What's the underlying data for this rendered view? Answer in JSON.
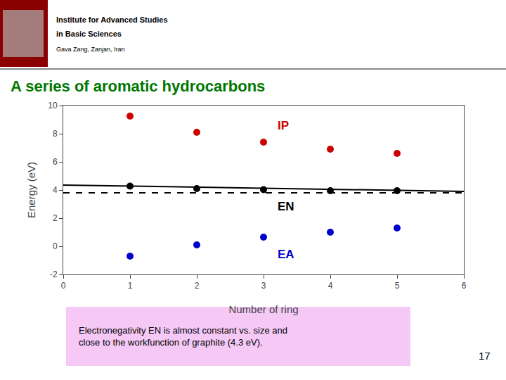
{
  "chart_data": {
    "type": "scatter",
    "title": "A series of aromatic hydrocarbons",
    "xlabel": "Number of ring",
    "ylabel": "Energy (eV)",
    "xlim": [
      0,
      6
    ],
    "ylim": [
      -2,
      10
    ],
    "xticks": [
      0,
      1,
      2,
      3,
      4,
      5,
      6
    ],
    "yticks": [
      -2,
      0,
      2,
      4,
      6,
      8,
      10
    ],
    "grid": false,
    "series": [
      {
        "name": "IP",
        "type": "scatter",
        "marker": "circle",
        "color": "#cc0000",
        "x": [
          1,
          2,
          3,
          4,
          5
        ],
        "values": [
          9.25,
          8.1,
          7.4,
          6.9,
          6.6
        ]
      },
      {
        "name": "EA",
        "type": "scatter",
        "marker": "circle",
        "color": "#0000cc",
        "x": [
          1,
          2,
          3,
          4,
          5
        ],
        "values": [
          -0.7,
          0.1,
          0.65,
          1.0,
          1.3
        ]
      },
      {
        "name": "EN",
        "type": "scatter",
        "marker": "circle",
        "color": "#000000",
        "x": [
          1,
          2,
          3,
          4,
          5
        ],
        "values": [
          4.275,
          4.1,
          4.025,
          3.95,
          3.95
        ]
      },
      {
        "type": "line",
        "line_style": "solid",
        "color": "#000000",
        "x": [
          0.0,
          6.0
        ],
        "values": [
          4.35,
          3.9
        ]
      },
      {
        "type": "hline",
        "line_style": "dashed",
        "color": "#000000",
        "values": [
          3.8
        ]
      }
    ],
    "annotations": [
      "Institute for Advanced Studies",
      "in Basic Sciences",
      "Gava Zang, Zanjan, Iran",
      "Electronegativity EN is almost constant vs. size and\nclose to the workfunction of graphite (4.3 eV).",
      "17"
    ]
  }
}
